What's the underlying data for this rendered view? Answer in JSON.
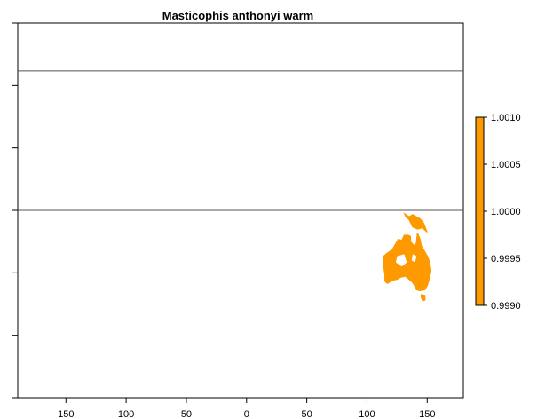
{
  "title": "Masticophis anthonyi warm",
  "colors": {
    "fill": "#FF9900",
    "axis": "#000000",
    "line": "#555555"
  },
  "map": {
    "x_range": [
      -190,
      180
    ],
    "y_range": [
      -90,
      90
    ],
    "x_ticks": [
      {
        "value": -150,
        "label": "150"
      },
      {
        "value": -100,
        "label": "100"
      },
      {
        "value": -50,
        "label": "50"
      },
      {
        "value": 0,
        "label": "0"
      },
      {
        "value": 50,
        "label": "50"
      },
      {
        "value": 100,
        "label": "100"
      },
      {
        "value": 150,
        "label": "150"
      }
    ],
    "y_ticks": [
      90,
      60,
      30,
      0,
      -30,
      -60,
      -90
    ],
    "reference_lines": [
      67,
      0
    ],
    "region_name": "Australia",
    "region_value": 1.0
  },
  "legend": {
    "min": 0.999,
    "max": 1.001,
    "labels": [
      "1.0010",
      "1.0005",
      "1.0000",
      "0.9995",
      "0.9990"
    ]
  }
}
